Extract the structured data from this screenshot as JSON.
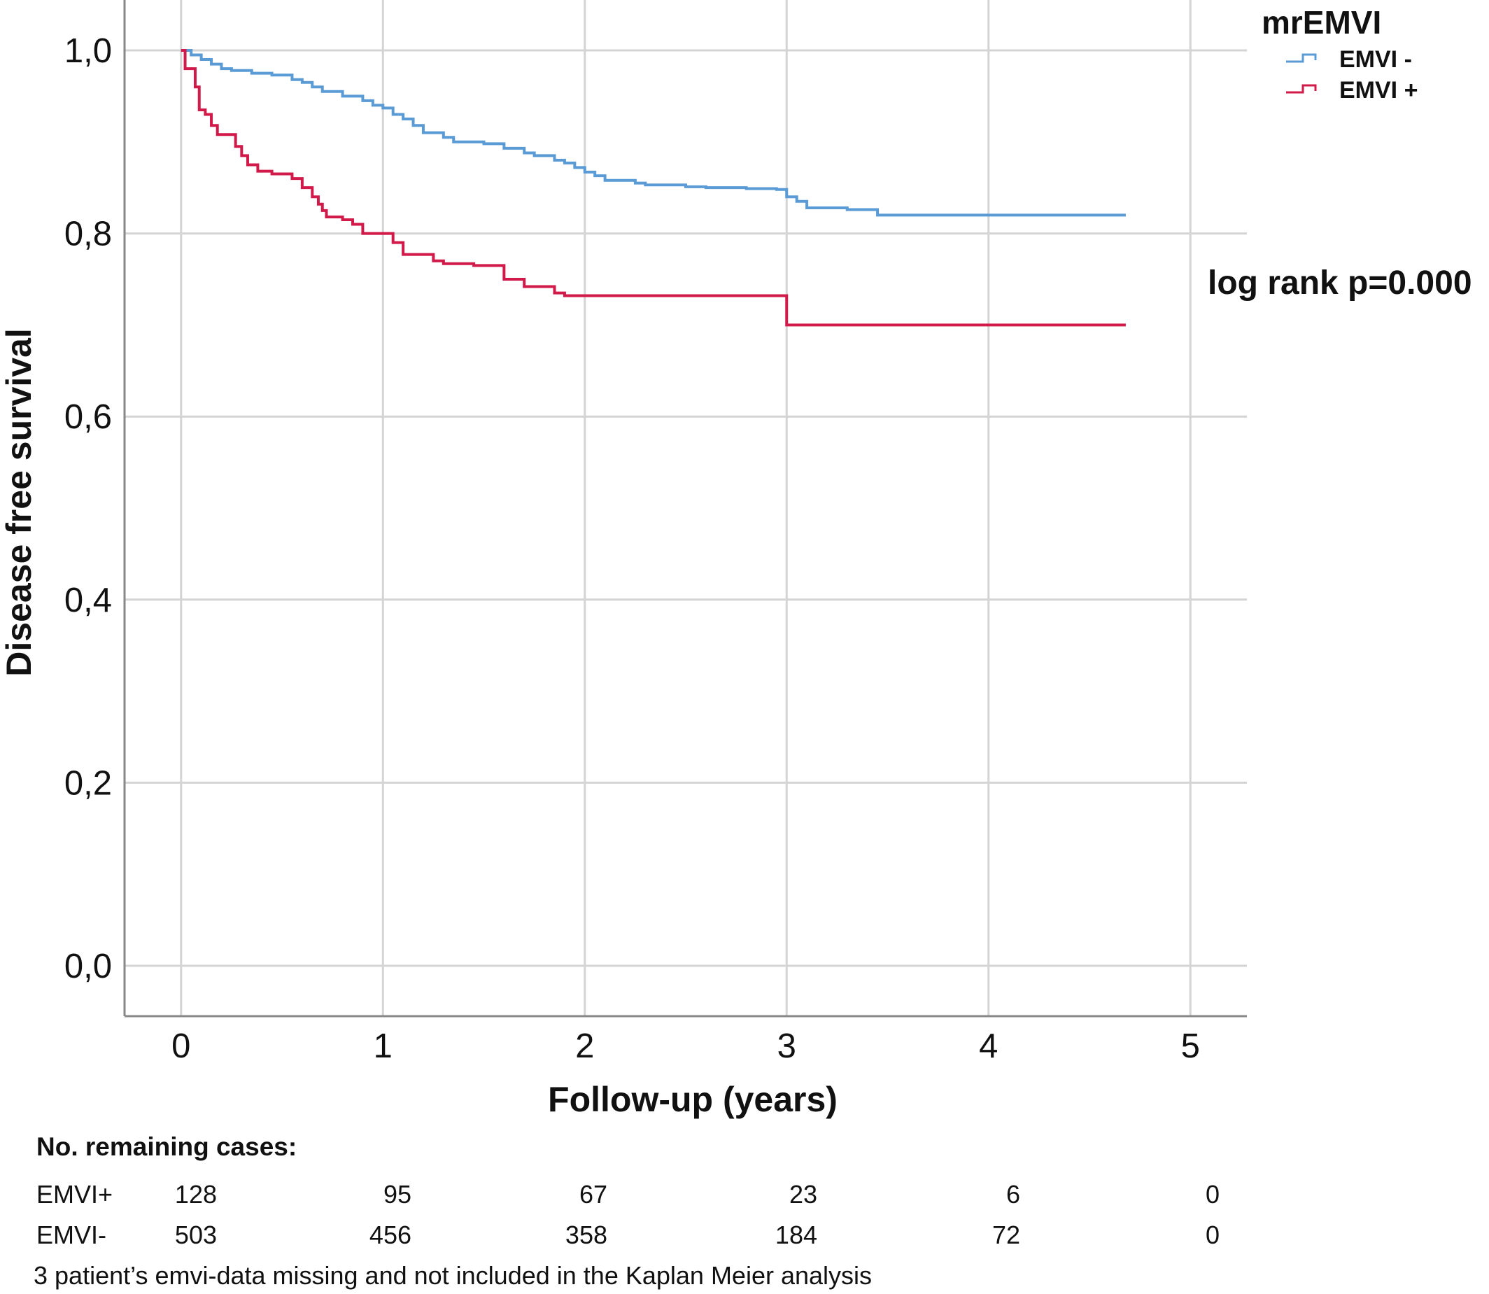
{
  "chart_data": {
    "type": "line",
    "step": true,
    "xlabel": "Follow-up (years)",
    "ylabel": "Disease free survival",
    "xlim": [
      -0.28,
      5.28
    ],
    "ylim": [
      -0.055,
      1.055
    ],
    "x_ticks": [
      0,
      1,
      2,
      3,
      4,
      5
    ],
    "x_tick_labels": [
      "0",
      "1",
      "2",
      "3",
      "4",
      "5"
    ],
    "y_ticks": [
      0,
      0.2,
      0.4,
      0.6,
      0.8,
      1.0
    ],
    "y_tick_labels": [
      "0,0",
      "0,2",
      "0,4",
      "0,6",
      "0,8",
      "1,0"
    ],
    "grid": true,
    "legend": {
      "title": "mrEMVI",
      "position": "top-right"
    },
    "annotation": "log rank p=0.000",
    "series": [
      {
        "name": "EMVI -",
        "color": "#5b9bd5",
        "x": [
          0,
          0.05,
          0.1,
          0.15,
          0.2,
          0.25,
          0.35,
          0.45,
          0.55,
          0.6,
          0.65,
          0.7,
          0.8,
          0.9,
          0.95,
          1.0,
          1.05,
          1.1,
          1.15,
          1.2,
          1.3,
          1.35,
          1.5,
          1.6,
          1.7,
          1.75,
          1.85,
          1.9,
          1.95,
          2.0,
          2.05,
          2.1,
          2.25,
          2.3,
          2.5,
          2.6,
          2.7,
          2.8,
          2.95,
          3.0,
          3.05,
          3.1,
          3.3,
          3.45,
          4.0,
          4.68
        ],
        "y": [
          1.0,
          0.995,
          0.99,
          0.985,
          0.98,
          0.978,
          0.975,
          0.973,
          0.968,
          0.965,
          0.96,
          0.955,
          0.95,
          0.945,
          0.94,
          0.937,
          0.93,
          0.925,
          0.918,
          0.91,
          0.905,
          0.9,
          0.898,
          0.893,
          0.888,
          0.885,
          0.88,
          0.877,
          0.872,
          0.867,
          0.863,
          0.858,
          0.855,
          0.853,
          0.851,
          0.85,
          0.85,
          0.849,
          0.848,
          0.84,
          0.835,
          0.828,
          0.826,
          0.82,
          0.82,
          0.82
        ]
      },
      {
        "name": "EMVI +",
        "color": "#d11a4a",
        "x": [
          0,
          0.02,
          0.07,
          0.09,
          0.12,
          0.15,
          0.18,
          0.27,
          0.3,
          0.33,
          0.38,
          0.45,
          0.55,
          0.6,
          0.65,
          0.68,
          0.7,
          0.72,
          0.8,
          0.85,
          0.9,
          1.0,
          1.05,
          1.1,
          1.25,
          1.3,
          1.45,
          1.6,
          1.7,
          1.85,
          1.9,
          2.0,
          3.0,
          4.68
        ],
        "y": [
          1.0,
          0.98,
          0.96,
          0.935,
          0.93,
          0.918,
          0.908,
          0.895,
          0.885,
          0.875,
          0.868,
          0.865,
          0.86,
          0.85,
          0.84,
          0.832,
          0.825,
          0.818,
          0.815,
          0.81,
          0.8,
          0.8,
          0.79,
          0.777,
          0.77,
          0.767,
          0.765,
          0.75,
          0.742,
          0.735,
          0.732,
          0.732,
          0.7,
          0.7
        ]
      }
    ]
  },
  "risk_table": {
    "heading": "No. remaining cases:",
    "rows": [
      {
        "label": "EMVI+",
        "values": [
          "128",
          "95",
          "67",
          "23",
          "6",
          "0"
        ]
      },
      {
        "label": "EMVI-",
        "values": [
          "503",
          "456",
          "358",
          "184",
          "72",
          "0"
        ]
      }
    ],
    "footnote": "3 patient’s emvi-data missing and not included in the Kaplan Meier analysis"
  }
}
